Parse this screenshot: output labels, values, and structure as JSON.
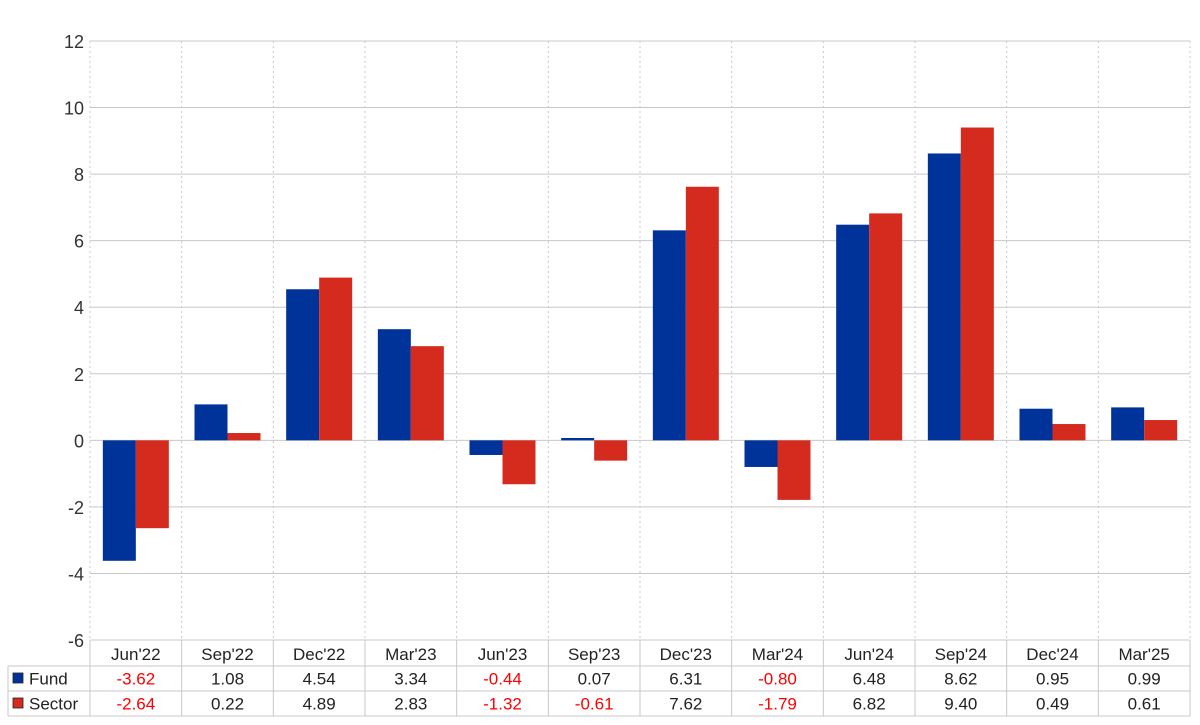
{
  "chart_data": {
    "type": "bar",
    "categories": [
      "Jun'22",
      "Sep'22",
      "Dec'22",
      "Mar'23",
      "Jun'23",
      "Sep'23",
      "Dec'23",
      "Mar'24",
      "Jun'24",
      "Sep'24",
      "Dec'24",
      "Mar'25"
    ],
    "series": [
      {
        "name": "Fund",
        "color": "#003399",
        "values": [
          -3.62,
          1.08,
          4.54,
          3.34,
          -0.44,
          0.07,
          6.31,
          -0.8,
          6.48,
          8.62,
          0.95,
          0.99
        ],
        "labels": [
          "-3.62",
          "1.08",
          "4.54",
          "3.34",
          "-0.44",
          "0.07",
          "6.31",
          "-0.80",
          "6.48",
          "8.62",
          "0.95",
          "0.99"
        ]
      },
      {
        "name": "Sector",
        "color": "#d52b1e",
        "values": [
          -2.64,
          0.22,
          4.89,
          2.83,
          -1.32,
          -0.61,
          7.62,
          -1.79,
          6.82,
          9.4,
          0.49,
          0.61
        ],
        "labels": [
          "-2.64",
          "0.22",
          "4.89",
          "2.83",
          "-1.32",
          "-0.61",
          "7.62",
          "-1.79",
          "6.82",
          "9.40",
          "0.49",
          "0.61"
        ]
      }
    ],
    "ylim": [
      -6,
      12
    ],
    "yticks": [
      "-6",
      "-4",
      "-2",
      "0",
      "2",
      "4",
      "6",
      "8",
      "10",
      "12"
    ],
    "grid": true,
    "legend": "table-below",
    "negative_label_color": "#ff0000",
    "title": "",
    "xlabel": "",
    "ylabel": ""
  }
}
